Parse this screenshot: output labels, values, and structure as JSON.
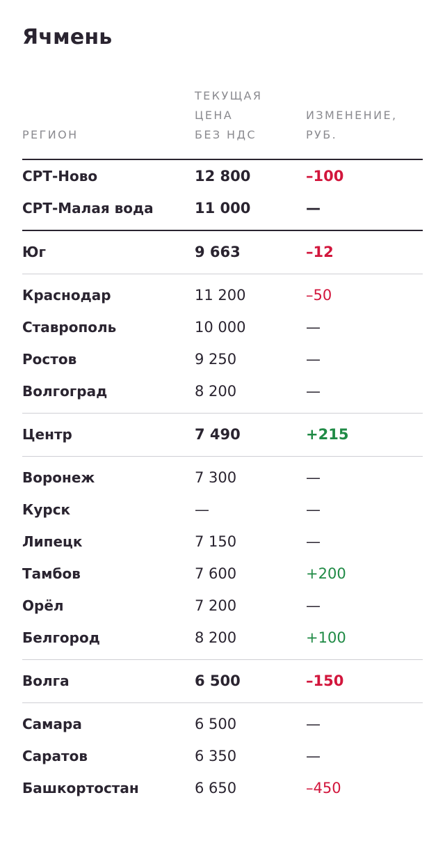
{
  "title": "Ячмень",
  "headers": {
    "region": "РЕГИОН",
    "price": "ТЕКУЩАЯ\nЦЕНА\nБЕЗ НДС",
    "change": "ИЗМЕНЕНИЕ,\nРУБ."
  },
  "colors": {
    "text": "#2a2430",
    "negative": "#d2163c",
    "positive": "#1f8a45",
    "muted": "#8a8a8f"
  },
  "groups": [
    {
      "divider": "none",
      "rows": [
        {
          "region": "СРТ-Ново",
          "price": "12 800",
          "change": "–100",
          "strong": true,
          "trend": "neg"
        },
        {
          "region": "СРТ-Малая вода",
          "price": "11 000",
          "change": "—",
          "strong": true,
          "trend": "none"
        }
      ]
    },
    {
      "divider": "dark",
      "rows": [
        {
          "region": "Юг",
          "price": "9 663",
          "change": "–12",
          "strong": true,
          "trend": "neg"
        }
      ]
    },
    {
      "divider": "light",
      "rows": [
        {
          "region": "Краснодар",
          "price": "11 200",
          "change": "–50",
          "strong": false,
          "trend": "neg"
        },
        {
          "region": "Ставрополь",
          "price": "10 000",
          "change": "—",
          "strong": false,
          "trend": "none"
        },
        {
          "region": "Ростов",
          "price": "9 250",
          "change": "—",
          "strong": false,
          "trend": "none"
        },
        {
          "region": "Волгоград",
          "price": "8 200",
          "change": "—",
          "strong": false,
          "trend": "none"
        }
      ]
    },
    {
      "divider": "light",
      "rows": [
        {
          "region": "Центр",
          "price": "7 490",
          "change": "+215",
          "strong": true,
          "trend": "pos"
        }
      ]
    },
    {
      "divider": "light",
      "rows": [
        {
          "region": "Воронеж",
          "price": "7 300",
          "change": "—",
          "strong": false,
          "trend": "none"
        },
        {
          "region": "Курск",
          "price": "—",
          "change": "—",
          "strong": false,
          "trend": "none"
        },
        {
          "region": "Липецк",
          "price": "7 150",
          "change": "—",
          "strong": false,
          "trend": "none"
        },
        {
          "region": "Тамбов",
          "price": "7 600",
          "change": "+200",
          "strong": false,
          "trend": "pos"
        },
        {
          "region": "Орёл",
          "price": "7 200",
          "change": "—",
          "strong": false,
          "trend": "none"
        },
        {
          "region": "Белгород",
          "price": "8 200",
          "change": "+100",
          "strong": false,
          "trend": "pos"
        }
      ]
    },
    {
      "divider": "light",
      "rows": [
        {
          "region": "Волга",
          "price": "6 500",
          "change": "–150",
          "strong": true,
          "trend": "neg"
        }
      ]
    },
    {
      "divider": "light",
      "rows": [
        {
          "region": "Самара",
          "price": "6 500",
          "change": "—",
          "strong": false,
          "trend": "none"
        },
        {
          "region": "Саратов",
          "price": "6 350",
          "change": "—",
          "strong": false,
          "trend": "none"
        },
        {
          "region": "Башкортостан",
          "price": "6 650",
          "change": "–450",
          "strong": false,
          "trend": "neg"
        }
      ]
    }
  ]
}
